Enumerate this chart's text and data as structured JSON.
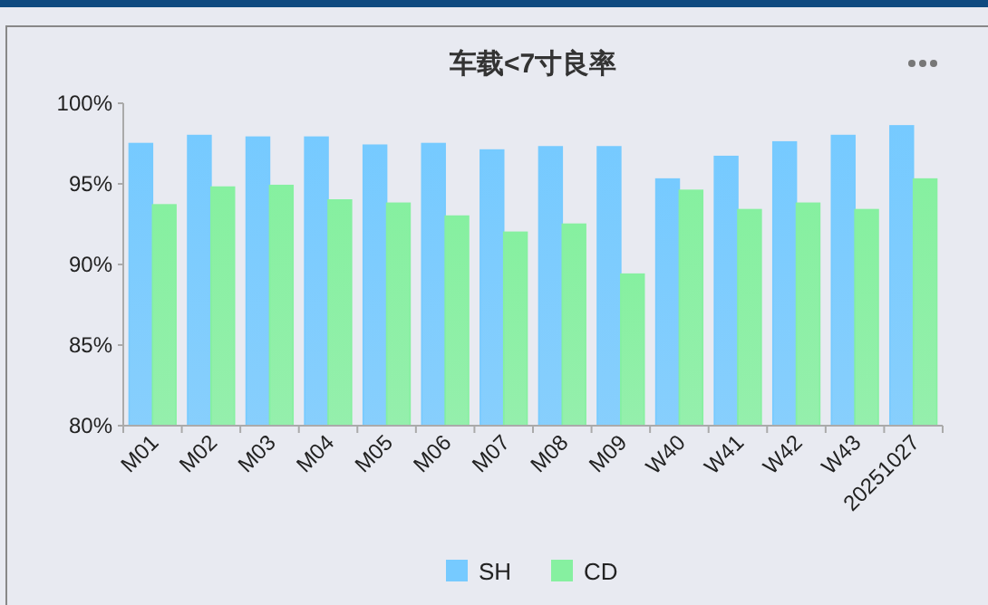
{
  "chart_data": {
    "type": "bar",
    "title": "车载<7寸良率",
    "categories": [
      "M01",
      "M02",
      "M03",
      "M04",
      "M05",
      "M06",
      "M07",
      "M08",
      "M09",
      "W40",
      "W41",
      "W42",
      "W43",
      "20251027"
    ],
    "series": [
      {
        "name": "SH",
        "color": "#76caff",
        "values": [
          97.5,
          98.0,
          97.9,
          97.9,
          97.4,
          97.5,
          97.1,
          97.3,
          97.3,
          95.3,
          96.7,
          97.6,
          98.0,
          98.6
        ]
      },
      {
        "name": "CD",
        "color": "#86f0a0",
        "values": [
          93.7,
          94.8,
          94.9,
          94.0,
          93.8,
          93.0,
          92.0,
          92.5,
          89.4,
          94.6,
          93.4,
          93.8,
          93.4,
          95.3
        ]
      }
    ],
    "ylim": [
      80,
      100
    ],
    "yticks": [
      {
        "value": 80,
        "label": "80%"
      },
      {
        "value": 85,
        "label": "85%"
      },
      {
        "value": 90,
        "label": "90%"
      },
      {
        "value": 95,
        "label": "95%"
      },
      {
        "value": 100,
        "label": "100%"
      }
    ],
    "grid": false,
    "legend": "bottom"
  }
}
